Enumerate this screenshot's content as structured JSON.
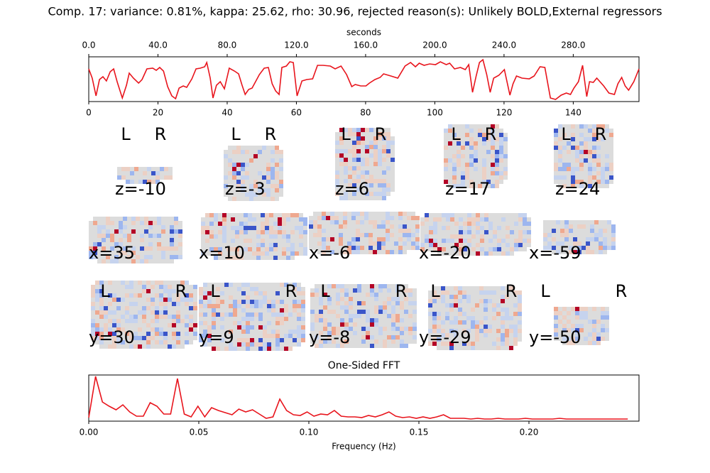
{
  "title": "Comp. 17: variance: 0.81%, kappa: 25.62, rho: 30.96, rejected reason(s): Unlikely BOLD,External regressors",
  "chart_data": [
    {
      "type": "line",
      "x2_label": "seconds",
      "color": "#e8141c",
      "x": [
        0,
        1.0,
        2.1,
        3.1,
        4.1,
        5.1,
        6.2,
        7.2,
        8.2,
        9.7,
        10.9,
        11.7,
        12.9,
        14.4,
        15.4,
        16.8,
        18.5,
        19.5,
        20.5,
        21.6,
        22.8,
        24.0,
        25.1,
        26.1,
        27.3,
        28.3,
        29.8,
        31.0,
        32.2,
        33.5,
        34.1,
        35.1,
        35.9,
        36.9,
        38.0,
        39.2,
        40.6,
        42.1,
        43.3,
        44.3,
        45.2,
        46.2,
        47.2,
        48.2,
        49.3,
        50.7,
        51.9,
        53.0,
        54.0,
        55.0,
        55.8,
        57.1,
        58.1,
        59.1,
        60.2,
        61.6,
        63.0,
        64.7,
        66.1,
        67.7,
        69.8,
        71.2,
        72.9,
        74.5,
        76.0,
        77.0,
        78.6,
        80.1,
        81.1,
        82.7,
        84.2,
        85.2,
        87.3,
        89.3,
        91.4,
        93.0,
        94.4,
        95.5,
        96.9,
        98.5,
        100.2,
        101.6,
        103.3,
        104.3,
        105.7,
        107.4,
        108.8,
        109.8,
        110.9,
        111.9,
        112.9,
        113.9,
        115.0,
        116.0,
        117.0,
        118.5,
        120.1,
        121.7,
        122.6,
        123.6,
        125.2,
        127.3,
        128.7,
        130.4,
        131.8,
        133.4,
        134.9,
        136.5,
        138.0,
        139.2,
        140.2,
        141.5,
        142.7,
        143.9,
        144.7,
        145.8,
        146.8,
        148.8,
        150.3,
        151.9,
        152.9,
        154.0,
        155.0,
        156.0,
        157.5,
        159
      ],
      "values": [
        46,
        33,
        8,
        31,
        35,
        29,
        42,
        46,
        28,
        5,
        23,
        40,
        33,
        26,
        31,
        46,
        47,
        44,
        48,
        43,
        21,
        8,
        4,
        19,
        22,
        20,
        32,
        46,
        47,
        49,
        55,
        33,
        5,
        23,
        28,
        18,
        47,
        43,
        39,
        23,
        10,
        17,
        19,
        28,
        38,
        47,
        48,
        25,
        15,
        10,
        48,
        50,
        56,
        55,
        8,
        29,
        31,
        32,
        51,
        51,
        50,
        46,
        50,
        38,
        21,
        24,
        22,
        22,
        26,
        31,
        34,
        39,
        36,
        33,
        50,
        55,
        49,
        54,
        51,
        53,
        52,
        56,
        52,
        54,
        46,
        48,
        45,
        52,
        13,
        35,
        55,
        59,
        38,
        13,
        33,
        37,
        45,
        9,
        25,
        36,
        33,
        32,
        36,
        49,
        48,
        5,
        3,
        9,
        12,
        10,
        19,
        28,
        51,
        7,
        28,
        27,
        33,
        22,
        12,
        10,
        25,
        34,
        22,
        16,
        28,
        46
      ],
      "xlim": [
        0,
        159
      ],
      "xticks": [
        0,
        20,
        40,
        60,
        80,
        100,
        120,
        140
      ],
      "ylim": [
        0,
        63
      ],
      "x2lim": [
        0,
        318
      ],
      "x2ticks": [
        {
          "value": 0,
          "label": "0.0"
        },
        {
          "value": 40,
          "label": "40.0"
        },
        {
          "value": 80,
          "label": "80.0"
        },
        {
          "value": 120,
          "label": "120.0"
        },
        {
          "value": 160,
          "label": "160.0"
        },
        {
          "value": 200,
          "label": "200.0"
        },
        {
          "value": 240,
          "label": "240.0"
        },
        {
          "value": 280,
          "label": "280.0"
        }
      ]
    },
    {
      "type": "line",
      "title": "One-Sided FFT",
      "x_label": "Frequency (Hz)",
      "color": "#e8141c",
      "x": [
        0,
        0.0031,
        0.0062,
        0.0093,
        0.0124,
        0.0155,
        0.0186,
        0.0217,
        0.0248,
        0.0279,
        0.031,
        0.0341,
        0.0372,
        0.0403,
        0.0434,
        0.0465,
        0.0496,
        0.0527,
        0.0558,
        0.0589,
        0.062,
        0.0651,
        0.0682,
        0.0713,
        0.0744,
        0.0775,
        0.0806,
        0.0837,
        0.0868,
        0.0899,
        0.093,
        0.0961,
        0.0992,
        0.1023,
        0.1054,
        0.1085,
        0.1116,
        0.1147,
        0.1178,
        0.1209,
        0.124,
        0.1271,
        0.1302,
        0.1333,
        0.1364,
        0.1395,
        0.1426,
        0.1457,
        0.1488,
        0.1519,
        0.155,
        0.1581,
        0.1612,
        0.1643,
        0.1674,
        0.1705,
        0.1736,
        0.1767,
        0.1798,
        0.1829,
        0.186,
        0.1891,
        0.1922,
        0.1953,
        0.1984,
        0.2015,
        0.2046,
        0.2077,
        0.2108,
        0.2139,
        0.217,
        0.2201,
        0.2232,
        0.2263,
        0.2294,
        0.2325,
        0.2356,
        0.2387,
        0.2418,
        0.2449
      ],
      "values": [
        5,
        63,
        27,
        21,
        16,
        23,
        13,
        7,
        7,
        26,
        21,
        10,
        10,
        60,
        10,
        6,
        21,
        6,
        19,
        15,
        12,
        9,
        17,
        13,
        16,
        10,
        4,
        6,
        31,
        15,
        9,
        8,
        13,
        7,
        10,
        9,
        15,
        7,
        6,
        6,
        5,
        8,
        6,
        9,
        13,
        7,
        5,
        6,
        4,
        6,
        4,
        6,
        9,
        4,
        4,
        4,
        3,
        4,
        3,
        3,
        4,
        3,
        3,
        3,
        4,
        3,
        3,
        3,
        3,
        4,
        3,
        3,
        3,
        3,
        3,
        3,
        3,
        3,
        3,
        3
      ],
      "xlim": [
        0,
        0.25
      ],
      "ylim": [
        0,
        65
      ],
      "xticks": [
        {
          "value": 0,
          "label": "0.00"
        },
        {
          "value": 0.05,
          "label": "0.05"
        },
        {
          "value": 0.1,
          "label": "0.10"
        },
        {
          "value": 0.15,
          "label": "0.15"
        },
        {
          "value": 0.2,
          "label": "0.20"
        }
      ]
    }
  ],
  "slices": [
    [
      {
        "label": "z=-10",
        "L": "L",
        "R": "R"
      },
      {
        "label": "z=-3",
        "L": "L",
        "R": "R"
      },
      {
        "label": "z=6",
        "L": "L",
        "R": "R"
      },
      {
        "label": "z=17",
        "L": "L",
        "R": "R"
      },
      {
        "label": "z=24",
        "L": "L",
        "R": "R"
      }
    ],
    [
      {
        "label": "x=35"
      },
      {
        "label": "x=10"
      },
      {
        "label": "x=-6"
      },
      {
        "label": "x=-20"
      },
      {
        "label": "x=-59"
      }
    ],
    [
      {
        "label": "y=30",
        "L": "L",
        "R": "R"
      },
      {
        "label": "y=9",
        "L": "L",
        "R": "R"
      },
      {
        "label": "y=-8",
        "L": "L",
        "R": "R"
      },
      {
        "label": "y=-29",
        "L": "L",
        "R": "R"
      },
      {
        "label": "y=-50",
        "L": "L",
        "R": "R"
      }
    ]
  ]
}
